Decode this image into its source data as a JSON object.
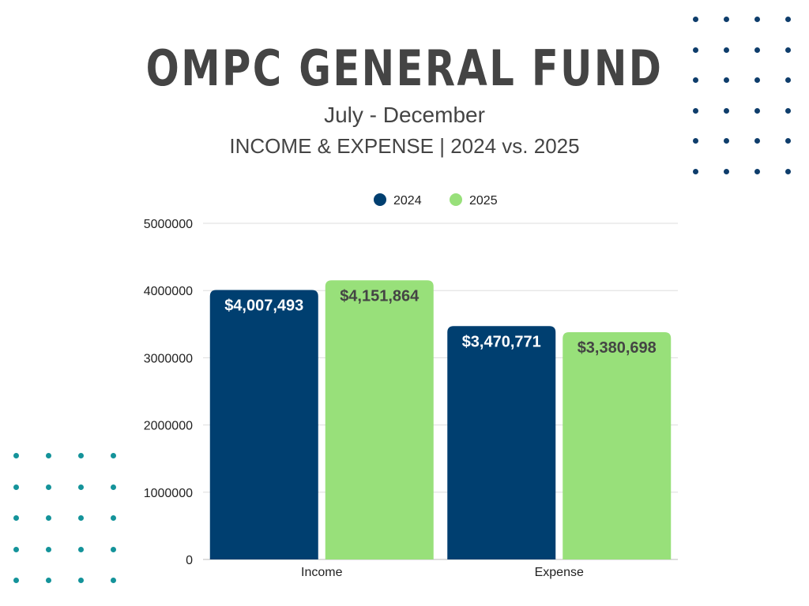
{
  "header": {
    "title": "OMPC GENERAL FUND",
    "period": "July - December",
    "subtitle": "INCOME & EXPENSE | 2024 vs. 2025"
  },
  "colors": {
    "series_2024": "#003f70",
    "series_2025": "#98e07a",
    "label_2024": "#ffffff",
    "label_2025": "#444444",
    "grid": "#dddddd",
    "dots_top": "#0e3d6b",
    "dots_bottom": "#14939a"
  },
  "chart_data": {
    "type": "bar",
    "title": "OMPC GENERAL FUND",
    "categories": [
      "Income",
      "Expense"
    ],
    "series": [
      {
        "name": "2024",
        "values": [
          4007493,
          3470771
        ],
        "labels": [
          "$4,007,493",
          "$3,470,771"
        ]
      },
      {
        "name": "2025",
        "values": [
          4151864,
          3380698
        ],
        "labels": [
          "$4,151,864",
          "$3,380,698"
        ]
      }
    ],
    "y_ticks": [
      "0",
      "1000000",
      "2000000",
      "3000000",
      "4000000",
      "5000000"
    ],
    "ylim": [
      0,
      5000000
    ],
    "grid": true,
    "legend_position": "top-center",
    "xlabel": "",
    "ylabel": ""
  }
}
